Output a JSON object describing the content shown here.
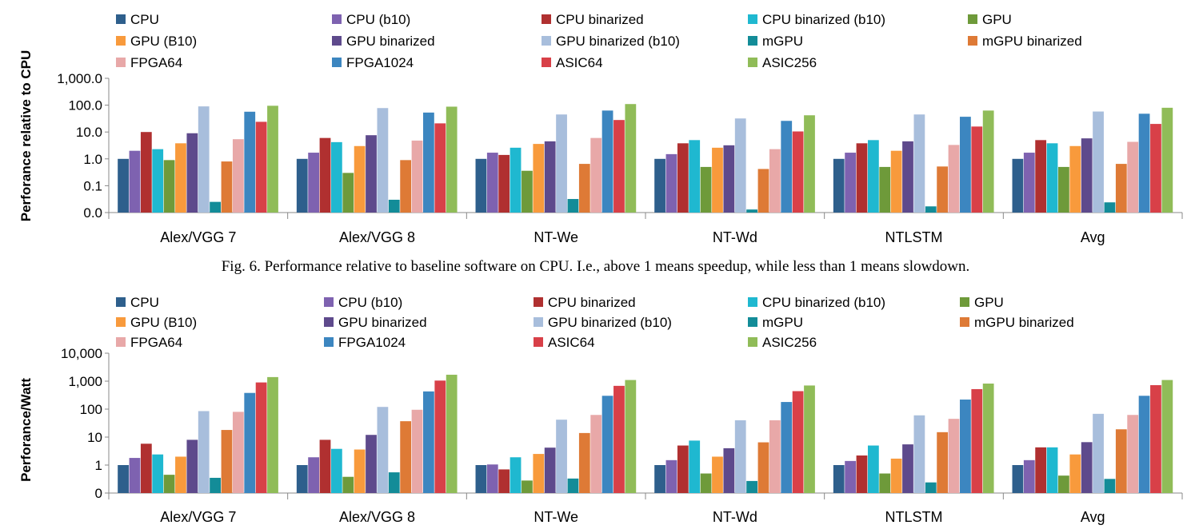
{
  "caption": "Fig. 6. Performance relative to baseline software on CPU. I.e., above 1 means speedup, while less than 1 means slowdown.",
  "series_colors": [
    "#2E5F8C",
    "#7E62B0",
    "#B03030",
    "#1FB8D0",
    "#6E9A3A",
    "#F89A3C",
    "#5E4A8C",
    "#A8BEDC",
    "#138C98",
    "#DE7A36",
    "#E8A8A8",
    "#3C86C0",
    "#D84048",
    "#90BC58"
  ],
  "chart_data": [
    {
      "type": "bar",
      "scale": "log",
      "title": "",
      "xlabel": "",
      "ylabel": "Perforance relative to CPU",
      "ylim": [
        0.01,
        1000
      ],
      "yticks": [
        0.01,
        0.1,
        1,
        10,
        100,
        1000
      ],
      "ytick_labels": [
        "0.0",
        "0.1",
        "1.0",
        "10.0",
        "100.0",
        "1,000.0"
      ],
      "legend_position": "top",
      "categories": [
        "Alex/VGG 7",
        "Alex/VGG 8",
        "NT-We",
        "NT-Wd",
        "NTLSTM",
        "Avg"
      ],
      "series": [
        {
          "name": "CPU",
          "values": [
            1.0,
            1.0,
            1.0,
            1.0,
            1.0,
            1.0
          ]
        },
        {
          "name": "CPU  (b10)",
          "values": [
            2.0,
            1.7,
            1.7,
            1.5,
            1.7,
            1.7
          ]
        },
        {
          "name": "CPU binarized",
          "values": [
            10.0,
            6.0,
            1.4,
            3.8,
            3.8,
            5.0
          ]
        },
        {
          "name": "CPU binarized (b10)",
          "values": [
            2.3,
            4.2,
            2.6,
            5.0,
            5.0,
            3.8
          ]
        },
        {
          "name": "GPU",
          "values": [
            0.9,
            0.3,
            0.36,
            0.5,
            0.5,
            0.5
          ]
        },
        {
          "name": "GPU (B10)",
          "values": [
            3.8,
            3.0,
            3.6,
            2.6,
            2.0,
            3.0
          ]
        },
        {
          "name": "GPU binarized",
          "values": [
            9.0,
            7.6,
            4.5,
            3.2,
            4.5,
            5.8
          ]
        },
        {
          "name": "GPU binarized (b10)",
          "values": [
            90,
            78,
            45,
            32,
            45,
            58
          ]
        },
        {
          "name": "mGPU",
          "values": [
            0.025,
            0.03,
            0.032,
            0.013,
            0.017,
            0.024
          ]
        },
        {
          "name": "mGPU binarized",
          "values": [
            0.8,
            0.9,
            0.65,
            0.42,
            0.52,
            0.65
          ]
        },
        {
          "name": "FPGA64",
          "values": [
            5.4,
            4.8,
            6.0,
            2.3,
            3.3,
            4.3
          ]
        },
        {
          "name": "FPGA1024",
          "values": [
            57,
            53,
            63,
            26,
            37,
            48
          ]
        },
        {
          "name": "ASIC64",
          "values": [
            24,
            21,
            28,
            10.5,
            16,
            20
          ]
        },
        {
          "name": "ASIC256",
          "values": [
            95,
            88,
            110,
            42,
            63,
            80
          ]
        }
      ]
    },
    {
      "type": "bar",
      "scale": "log",
      "title": "",
      "xlabel": "",
      "ylabel": "Perforance/Watt",
      "ylim": [
        0.1,
        10000
      ],
      "yticks": [
        0.1,
        1,
        10,
        100,
        1000,
        10000
      ],
      "ytick_labels": [
        "0",
        "1",
        "10",
        "100",
        "1,000",
        "10,000"
      ],
      "legend_position": "top",
      "categories": [
        "Alex/VGG 7",
        "Alex/VGG 8",
        "NT-We",
        "NT-Wd",
        "NTLSTM",
        "Avg"
      ],
      "series": [
        {
          "name": "CPU",
          "values": [
            1.0,
            1.0,
            1.0,
            1.0,
            1.0,
            1.0
          ]
        },
        {
          "name": "CPU  (b10)",
          "values": [
            1.8,
            1.9,
            1.05,
            1.5,
            1.4,
            1.5
          ]
        },
        {
          "name": "CPU binarized",
          "values": [
            5.8,
            8.0,
            0.7,
            5.0,
            2.2,
            4.3
          ]
        },
        {
          "name": "CPU binarized (b10)",
          "values": [
            2.4,
            3.8,
            1.9,
            7.5,
            5.0,
            4.3
          ]
        },
        {
          "name": "GPU",
          "values": [
            0.45,
            0.38,
            0.28,
            0.5,
            0.5,
            0.42
          ]
        },
        {
          "name": "GPU (B10)",
          "values": [
            2.0,
            3.6,
            2.5,
            2.0,
            1.7,
            2.4
          ]
        },
        {
          "name": "GPU binarized",
          "values": [
            8.0,
            12,
            4.2,
            4.0,
            5.5,
            6.6
          ]
        },
        {
          "name": "GPU binarized (b10)",
          "values": [
            85,
            120,
            42,
            40,
            60,
            68
          ]
        },
        {
          "name": "mGPU",
          "values": [
            0.35,
            0.55,
            0.33,
            0.27,
            0.24,
            0.32
          ]
        },
        {
          "name": "mGPU binarized",
          "values": [
            18,
            37,
            14,
            6.5,
            15,
            19
          ]
        },
        {
          "name": "FPGA64",
          "values": [
            80,
            95,
            62,
            40,
            45,
            62
          ]
        },
        {
          "name": "FPGA1024",
          "values": [
            380,
            430,
            300,
            180,
            220,
            300
          ]
        },
        {
          "name": "ASIC64",
          "values": [
            900,
            1050,
            680,
            440,
            520,
            720
          ]
        },
        {
          "name": "ASIC256",
          "values": [
            1400,
            1700,
            1100,
            700,
            820,
            1100
          ]
        }
      ]
    }
  ]
}
